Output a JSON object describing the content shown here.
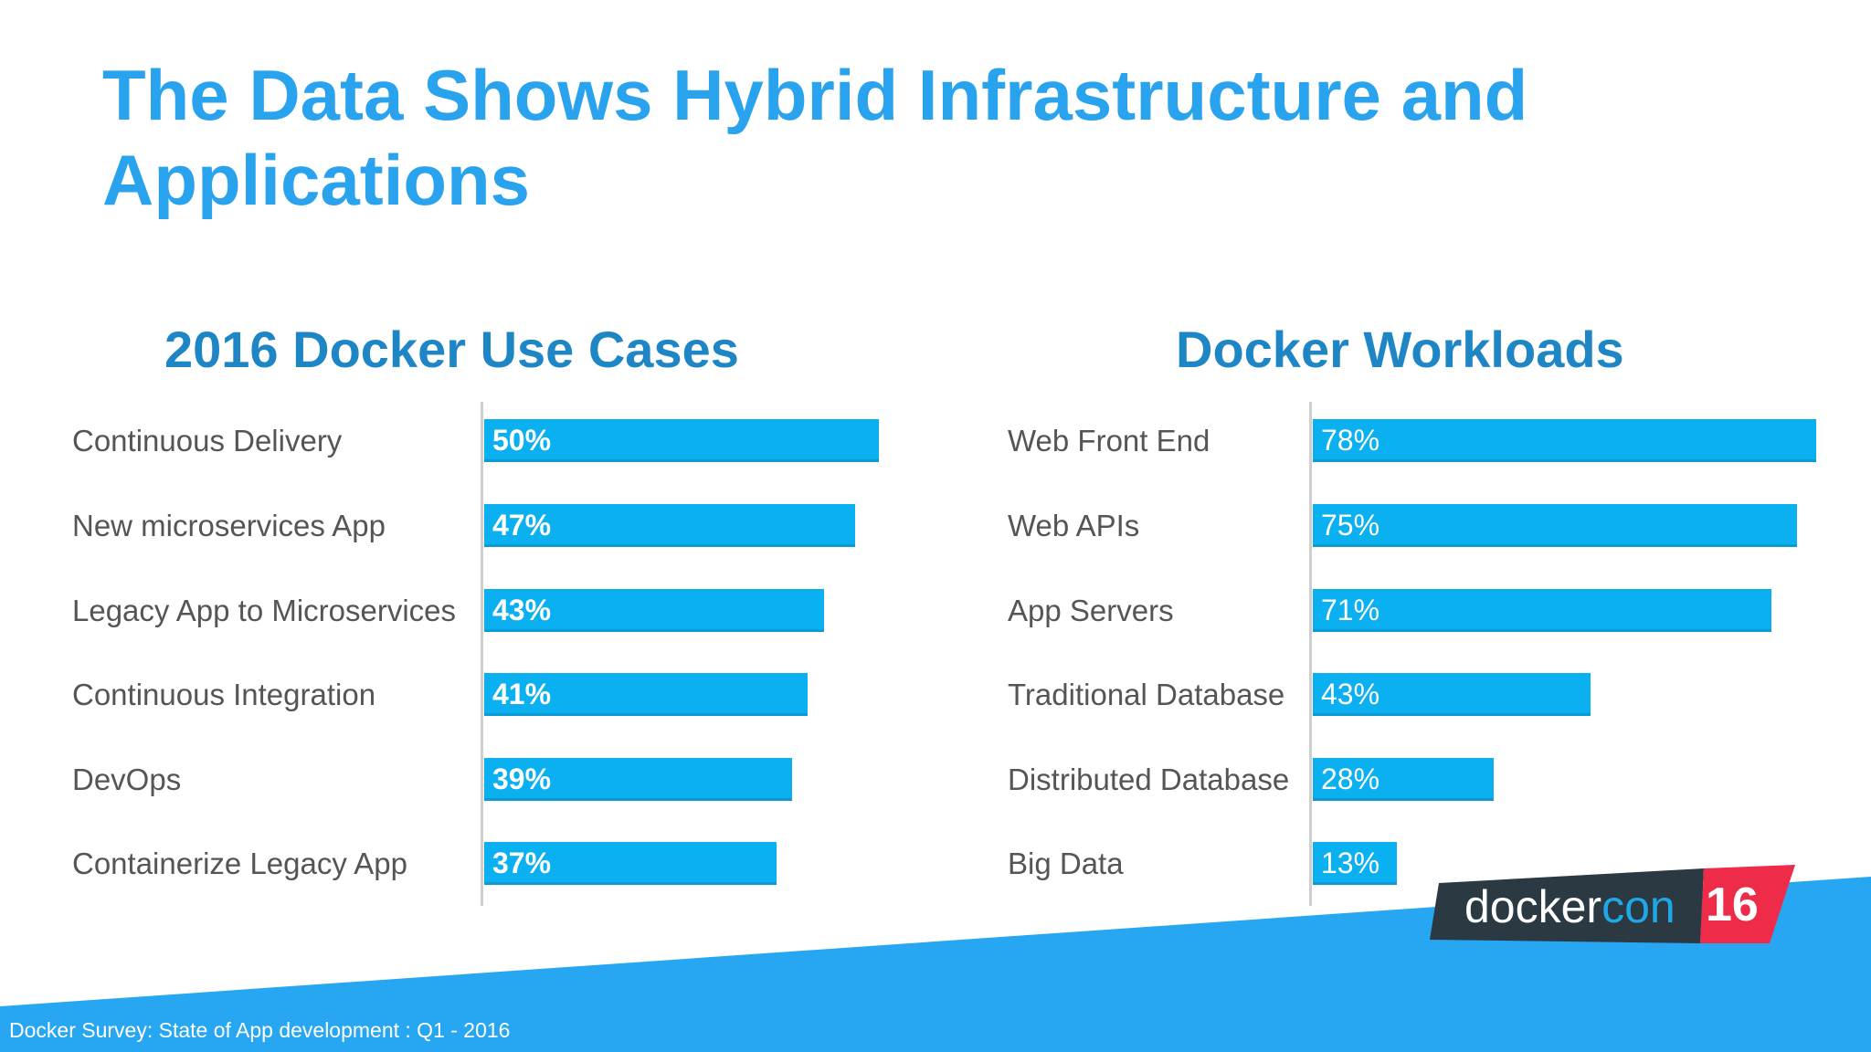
{
  "slide": {
    "title": "The Data Shows Hybrid Infrastructure and Applications",
    "footer": "Docker Survey: State of App development :  Q1 - 2016",
    "logo": {
      "word_docker": "docker",
      "word_con": "con",
      "number": "16"
    },
    "colors": {
      "title": "#2aa3ee",
      "subtitle": "#1f86c6",
      "bar": "#0ab0ef",
      "band": "#27a6f2",
      "logo_dark": "#2b3a42",
      "logo_red": "#ee2b48"
    }
  },
  "chart_data": [
    {
      "type": "bar",
      "orientation": "horizontal",
      "title": "2016 Docker Use Cases",
      "categories": [
        "Continuous Delivery",
        "New microservices App",
        "Legacy App to Microservices",
        "Continuous Integration",
        "DevOps",
        "Containerize Legacy App"
      ],
      "values": [
        50,
        47,
        43,
        41,
        39,
        37
      ],
      "data_labels": [
        "50%",
        "47%",
        "43%",
        "41%",
        "39%",
        "37%"
      ],
      "unit": "%",
      "xlim": [
        0,
        50
      ]
    },
    {
      "type": "bar",
      "orientation": "horizontal",
      "title": "Docker Workloads",
      "categories": [
        "Web Front End",
        "Web APIs",
        "App Servers",
        "Traditional Database",
        "Distributed Database",
        "Big Data"
      ],
      "values": [
        78,
        75,
        71,
        43,
        28,
        13
      ],
      "data_labels": [
        "78%",
        "75%",
        "71%",
        "43%",
        "28%",
        "13%"
      ],
      "unit": "%",
      "xlim": [
        0,
        78
      ]
    }
  ]
}
